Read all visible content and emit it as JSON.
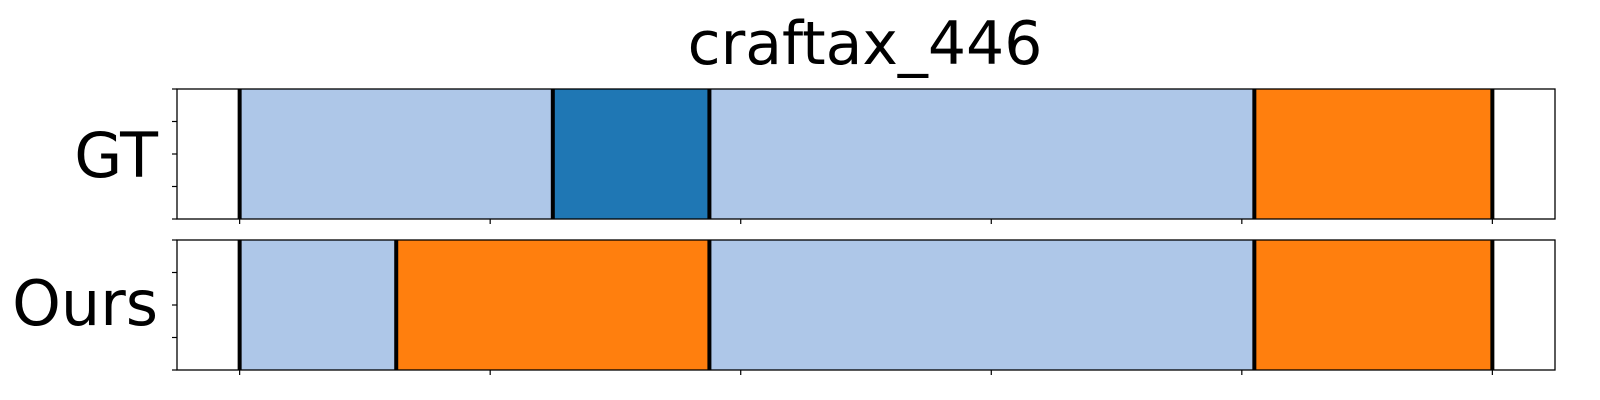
{
  "chart_data": {
    "type": "segmentation-timeline",
    "title": "craftax_446",
    "xlim": [
      0,
      11
    ],
    "ticks": [
      0.5,
      2.5,
      4.5,
      6.5,
      8.5,
      10.5
    ],
    "rows": [
      {
        "label": "GT",
        "segments": [
          {
            "start": 0.5,
            "end": 3.0,
            "color": "#aec7e8"
          },
          {
            "start": 3.0,
            "end": 4.25,
            "color": "#1f77b4"
          },
          {
            "start": 4.25,
            "end": 8.6,
            "color": "#aec7e8"
          },
          {
            "start": 8.6,
            "end": 10.5,
            "color": "#ff7f0e"
          }
        ],
        "boundaries": [
          0.5,
          3.0,
          4.25,
          8.6,
          10.5
        ]
      },
      {
        "label": "Ours",
        "segments": [
          {
            "start": 0.5,
            "end": 1.75,
            "color": "#aec7e8"
          },
          {
            "start": 1.75,
            "end": 4.25,
            "color": "#ff7f0e"
          },
          {
            "start": 4.25,
            "end": 8.6,
            "color": "#aec7e8"
          },
          {
            "start": 8.6,
            "end": 10.5,
            "color": "#ff7f0e"
          }
        ],
        "boundaries": [
          0.5,
          1.75,
          4.25,
          8.6,
          10.5
        ]
      }
    ]
  }
}
